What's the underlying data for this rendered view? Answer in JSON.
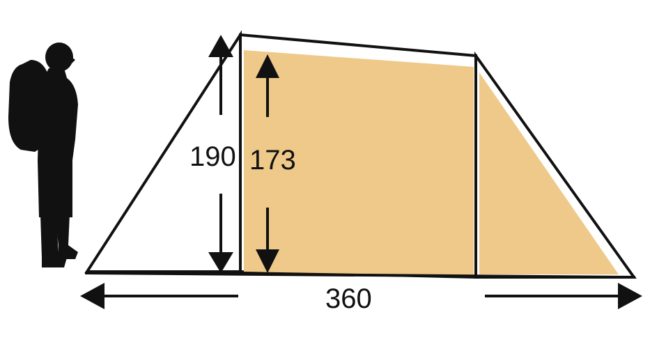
{
  "labels": {
    "outer_height": "190",
    "inner_height": "173",
    "length": "360"
  },
  "colors": {
    "tent_fill": "#efc989",
    "outline": "#111111",
    "background": "#ffffff"
  },
  "icons": {
    "person": "hiker-with-backpack-silhouette"
  }
}
